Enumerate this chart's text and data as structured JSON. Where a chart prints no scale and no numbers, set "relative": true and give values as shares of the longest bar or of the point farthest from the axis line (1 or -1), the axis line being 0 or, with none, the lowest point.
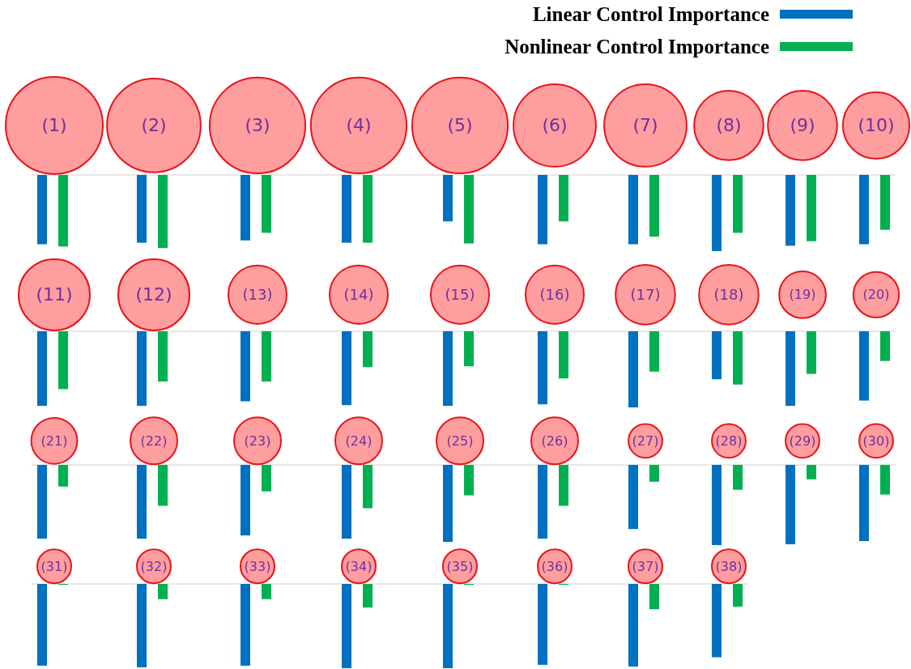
{
  "chart_data": [
    {
      "type": "bar",
      "relative": true,
      "legend": "top right",
      "categories": [
        "(1)",
        "(2)",
        "(3)",
        "(4)",
        "(5)",
        "(6)",
        "(7)",
        "(8)",
        "(9)",
        "(10)"
      ],
      "series": [
        {
          "type": "bubble",
          "color": "#ff9e9e",
          "values": [
            0.65,
            0.65,
            0.65,
            0.65,
            0.65,
            0.65,
            0.65,
            0.65,
            0.65,
            0.65
          ],
          "sizes": [
            1,
            0.93,
            0.97,
            0.97,
            0.97,
            0.72,
            0.72,
            0.51,
            0.51,
            0.47
          ]
        },
        {
          "name": "Linear Control Importance",
          "color": "#0070c0",
          "values": [
            -0.91,
            -0.89,
            -0.86,
            -0.89,
            -0.61,
            -0.91,
            -0.91,
            -1,
            -0.93,
            -0.91
          ]
        },
        {
          "name": "Nonlinear Control Importance",
          "color": "#00b050",
          "values": [
            -0.94,
            -0.96,
            -0.76,
            -0.89,
            -0.9,
            -0.61,
            -0.81,
            -0.76,
            -0.87,
            -0.72
          ]
        }
      ]
    },
    {
      "type": "bar",
      "relative": true,
      "categories": [
        "(11)",
        "(12)",
        "(13)",
        "(14)",
        "(15)",
        "(16)",
        "(17)",
        "(18)",
        "(19)",
        "(20)"
      ],
      "series": [
        {
          "type": "bubble",
          "color": "#ff9e9e",
          "values": [
            0.48,
            0.48,
            0.48,
            0.48,
            0.48,
            0.48,
            0.48,
            0.48,
            0.48,
            0.48
          ],
          "sizes": [
            1,
            1,
            0.67,
            0.67,
            0.67,
            0.67,
            0.7,
            0.7,
            0.43,
            0.41
          ]
        },
        {
          "color": "#0070c0",
          "values": [
            -0.98,
            -0.98,
            -0.92,
            -0.97,
            -0.98,
            -0.96,
            -1,
            -0.63,
            -0.98,
            -0.91
          ]
        },
        {
          "color": "#00b050",
          "values": [
            -0.76,
            -0.66,
            -0.66,
            -0.47,
            -0.46,
            -0.62,
            -0.53,
            -0.7,
            -0.56,
            -0.39
          ]
        }
      ]
    },
    {
      "type": "bar",
      "relative": true,
      "categories": [
        "(21)",
        "(22)",
        "(23)",
        "(24)",
        "(25)",
        "(26)",
        "(27)",
        "(28)",
        "(29)",
        "(30)"
      ],
      "series": [
        {
          "type": "bubble",
          "color": "#ff9e9e",
          "values": [
            0.3,
            0.3,
            0.3,
            0.3,
            0.3,
            0.3,
            0.3,
            0.3,
            0.3,
            0.3
          ],
          "sizes": [
            0.96,
            1,
            1,
            1,
            1,
            1,
            0.52,
            0.52,
            0.52,
            0.52
          ]
        },
        {
          "color": "#0070c0",
          "values": [
            -0.92,
            -0.92,
            -0.88,
            -0.92,
            -0.96,
            -0.92,
            -0.8,
            -1,
            -0.99,
            -0.95
          ]
        },
        {
          "color": "#00b050",
          "values": [
            -0.27,
            -0.51,
            -0.33,
            -0.54,
            -0.38,
            -0.51,
            -0.21,
            -0.31,
            -0.18,
            -0.37
          ]
        }
      ]
    },
    {
      "type": "bar",
      "relative": true,
      "categories": [
        "(31)",
        "(32)",
        "(33)",
        "(34)",
        "(35)",
        "(36)",
        "(37)",
        "(38)"
      ],
      "series": [
        {
          "type": "bubble",
          "color": "#ff9e9e",
          "values": [
            0.21,
            0.21,
            0.21,
            0.21,
            0.21,
            0.21,
            0.21,
            0.21
          ],
          "sizes": [
            1,
            1,
            1,
            1,
            1,
            1,
            1,
            1
          ]
        },
        {
          "color": "#0070c0",
          "values": [
            -0.97,
            -0.99,
            -0.97,
            -1,
            -1,
            -0.96,
            -0.98,
            -0.87
          ]
        },
        {
          "color": "#00b050",
          "values": [
            -0.01,
            -0.18,
            -0.18,
            -0.28,
            -0.01,
            -0.01,
            -0.3,
            -0.27
          ]
        }
      ]
    }
  ]
}
